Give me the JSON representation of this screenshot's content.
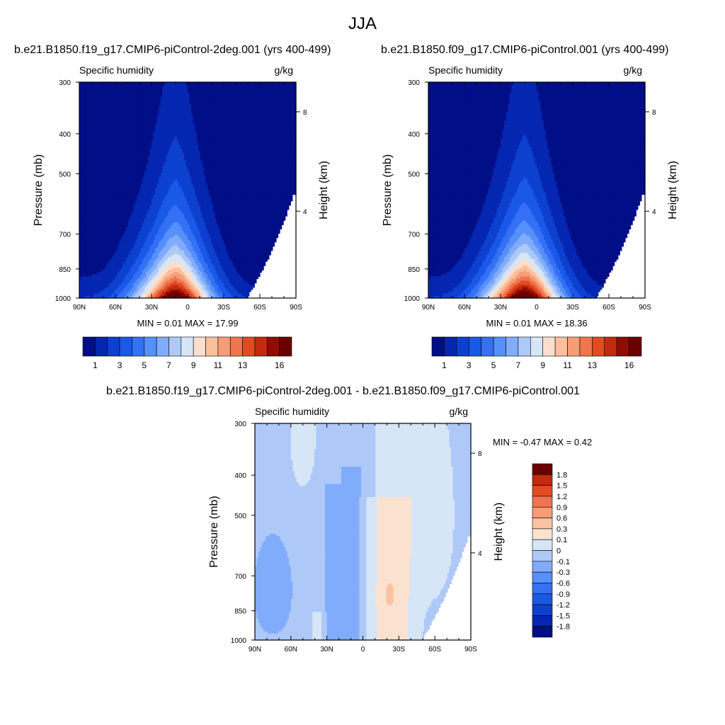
{
  "title": "JJA",
  "panels": [
    {
      "id": "top-left",
      "title": "b.e21.B1850.f19_g17.CMIP6-piControl-2deg.001 (yrs 400-499)",
      "variable": "Specific humidity",
      "units": "g/kg",
      "min_label": "MIN =",
      "min_value": "0.01",
      "max_label": "MAX =",
      "max_value": "17.99"
    },
    {
      "id": "top-right",
      "title": "b.e21.B1850.f09_g17.CMIP6-piControl.001 (yrs 400-499)",
      "variable": "Specific humidity",
      "units": "g/kg",
      "min_label": "MIN =",
      "min_value": "0.01",
      "max_label": "MAX =",
      "max_value": "18.36"
    },
    {
      "id": "bottom-diff",
      "title": "b.e21.B1850.f19_g17.CMIP6-piControl-2deg.001 - b.e21.B1850.f09_g17.CMIP6-piControl.001",
      "variable": "Specific humidity",
      "units": "g/kg",
      "min_label": "MIN =",
      "min_value": "-0.47",
      "max_label": "MAX =",
      "max_value": "0.42"
    }
  ],
  "chart_data": [
    {
      "type": "heatmap",
      "panel": "top-left",
      "title": "b.e21.B1850.f19_g17.CMIP6-piControl-2deg.001 (yrs 400-499)",
      "xlabel": "",
      "ylabel": "Pressure (mb)",
      "y2label": "Height (km)",
      "xlim": [
        90,
        -90
      ],
      "ylim": [
        1000,
        300
      ],
      "x_ticks": [
        "90N",
        "60N",
        "30N",
        "0",
        "30S",
        "60S",
        "90S"
      ],
      "y_ticks": [
        "300",
        "400",
        "500",
        "700",
        "850",
        "1000"
      ],
      "y2_ticks": [
        "8",
        "4"
      ],
      "field": {
        "peak_lat": 10,
        "peak_value": 18.0,
        "min": 0.01,
        "max": 17.99
      },
      "colorbar_labels": [
        "1",
        "3",
        "5",
        "7",
        "9",
        "11",
        "13",
        "16"
      ]
    },
    {
      "type": "heatmap",
      "panel": "top-right",
      "title": "b.e21.B1850.f09_g17.CMIP6-piControl.001 (yrs 400-499)",
      "xlabel": "",
      "ylabel": "Pressure (mb)",
      "y2label": "Height (km)",
      "xlim": [
        90,
        -90
      ],
      "ylim": [
        1000,
        300
      ],
      "x_ticks": [
        "90N",
        "60N",
        "30N",
        "0",
        "30S",
        "60S",
        "90S"
      ],
      "y_ticks": [
        "300",
        "400",
        "500",
        "700",
        "850",
        "1000"
      ],
      "y2_ticks": [
        "8",
        "4"
      ],
      "field": {
        "peak_lat": 10,
        "peak_value": 18.4,
        "min": 0.01,
        "max": 18.36
      },
      "colorbar_labels": [
        "1",
        "3",
        "5",
        "7",
        "9",
        "11",
        "13",
        "16"
      ]
    },
    {
      "type": "heatmap",
      "panel": "bottom-diff",
      "title": "b.e21.B1850.f19_g17.CMIP6-piControl-2deg.001 - b.e21.B1850.f09_g17.CMIP6-piControl.001",
      "xlabel": "",
      "ylabel": "Pressure (mb)",
      "y2label": "Height (km)",
      "xlim": [
        90,
        -90
      ],
      "ylim": [
        1000,
        300
      ],
      "x_ticks": [
        "90N",
        "60N",
        "30N",
        "0",
        "30S",
        "60S",
        "90S"
      ],
      "y_ticks": [
        "300",
        "400",
        "500",
        "700",
        "850",
        "1000"
      ],
      "y2_ticks": [
        "8",
        "4"
      ],
      "field": {
        "min": -0.47,
        "max": 0.42
      },
      "colorbar_labels": [
        "1.8",
        "1.5",
        "1.2",
        "0.9",
        "0.6",
        "0.3",
        "0.1",
        "0",
        "-0.1",
        "-0.3",
        "-0.6",
        "-0.9",
        "-1.2",
        "-1.5",
        "-1.8"
      ]
    }
  ],
  "colors": {
    "absolute_scale": [
      "#000e87",
      "#0526b0",
      "#0d40cf",
      "#1a58e8",
      "#3570f5",
      "#5690fa",
      "#80acfb",
      "#aec9f8",
      "#d6e6f7",
      "#fbdfcc",
      "#fbbf9c",
      "#f79d76",
      "#f0744e",
      "#e34a22",
      "#c32a0e",
      "#920c05",
      "#6b0000"
    ],
    "difference_scale": [
      "#000e87",
      "#0526b0",
      "#0d40cf",
      "#1a58e8",
      "#3570f5",
      "#5690fa",
      "#80acfb",
      "#aec9f8",
      "#d6e6f7",
      "#fbe2d0",
      "#fbc2a2",
      "#f79d76",
      "#f0744e",
      "#e34a22",
      "#c32a0e",
      "#6b0000"
    ],
    "missing": "#ffffff"
  }
}
